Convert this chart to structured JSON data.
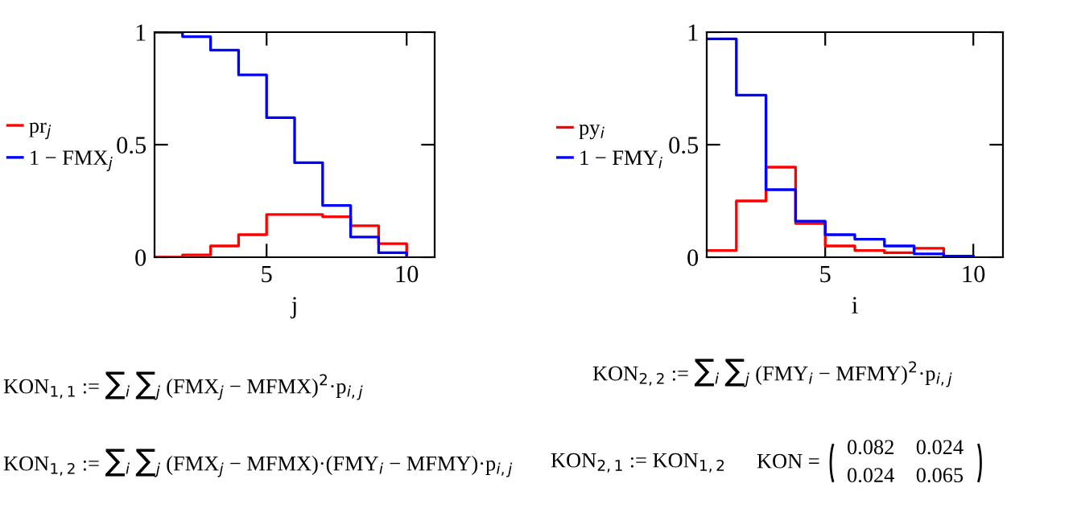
{
  "chart_data": [
    {
      "type": "step",
      "xlabel": "j",
      "x": [
        1,
        2,
        3,
        4,
        5,
        6,
        7,
        8,
        9,
        10
      ],
      "xlim": [
        1,
        11
      ],
      "xticks": [
        5,
        10
      ],
      "ylim": [
        0,
        1
      ],
      "yticks": [
        0,
        0.5,
        1
      ],
      "legend": "left",
      "grid": false,
      "series": [
        {
          "name": "pr$_{j}$",
          "color": "#ff0000",
          "values": [
            0.0,
            0.01,
            0.05,
            0.1,
            0.19,
            0.19,
            0.18,
            0.14,
            0.06,
            0.005
          ]
        },
        {
          "name": "1 − FMX$_{j}$",
          "color": "#0000ff",
          "values": [
            1.0,
            0.98,
            0.92,
            0.81,
            0.62,
            0.42,
            0.23,
            0.09,
            0.02,
            0.01
          ]
        }
      ]
    },
    {
      "type": "step",
      "xlabel": "i",
      "x": [
        1,
        2,
        3,
        4,
        5,
        6,
        7,
        8,
        9,
        10
      ],
      "xlim": [
        1,
        11
      ],
      "xticks": [
        5,
        10
      ],
      "ylim": [
        0,
        1
      ],
      "yticks": [
        0,
        0.5,
        1
      ],
      "legend": "left",
      "grid": false,
      "series": [
        {
          "name": "py$_{i}$",
          "color": "#ff0000",
          "values": [
            0.03,
            0.25,
            0.4,
            0.15,
            0.05,
            0.03,
            0.02,
            0.04,
            0.005,
            0.0
          ]
        },
        {
          "name": "1 − FMY$_{i}$",
          "color": "#0000ff",
          "values": [
            0.97,
            0.72,
            0.3,
            0.16,
            0.1,
            0.08,
            0.05,
            0.015,
            0.005,
            0.005
          ]
        }
      ],
      "annotations": [
        "KON$_{1,1}$ := ∑$_{i}$ ∑$_{j}$ (FMX$_{j}$ − MFMX)$^{2}$·p$_{i,j}$",
        "KON$_{2,2}$ := ∑$_{i}$ ∑$_{j}$ (FMY$_{i}$ − MFMY)$^{2}$·p$_{i,j}$",
        "KON$_{1,2}$ := ∑$_{i}$ ∑$_{j}$ (FMX$_{j}$ − MFMX)·(FMY$_{i}$ − MFMY)·p$_{i,j}$",
        "KON$_{2,1}$ := KON$_{1,2}$",
        "KON =",
        "0.082    0.024\n0.024    0.065"
      ]
    }
  ]
}
